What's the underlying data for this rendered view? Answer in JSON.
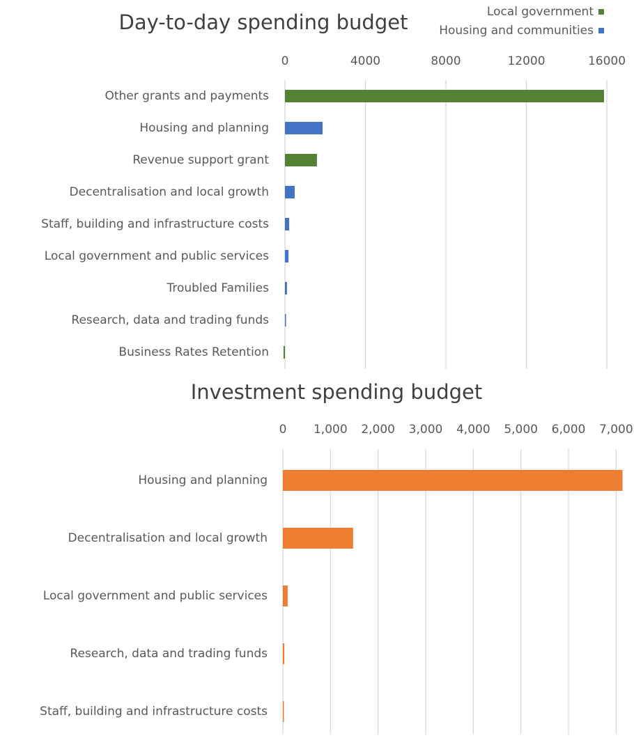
{
  "chart_data": [
    {
      "type": "hbar",
      "title": "Day-to-day spending budget",
      "categories": [
        "Other grants and payments",
        "Housing and planning",
        "Revenue support grant",
        "Decentralisation and local growth",
        "Staff, building and infrastructure costs",
        "Local government and public services",
        "Troubled Families",
        "Research, data and trading funds",
        "Business Rates Retention"
      ],
      "series": [
        {
          "name": "Local government",
          "color": "#548235",
          "values": [
            15860,
            null,
            1590,
            null,
            null,
            null,
            null,
            null,
            -70
          ]
        },
        {
          "name": "Housing and communities",
          "color": "#4472c4",
          "values": [
            null,
            1870,
            null,
            485,
            210,
            175,
            100,
            20,
            null
          ]
        }
      ],
      "xlim": [
        0,
        16000
      ],
      "xticks": [
        0,
        4000,
        8000,
        12000,
        16000
      ],
      "grid": true,
      "legend": "top-right"
    },
    {
      "type": "hbar",
      "title": "Investment spending budget",
      "categories": [
        "Housing and planning",
        "Decentralisation and local growth",
        "Local government and public services",
        "Research, data and trading funds",
        "Staff, building and infrastructure costs"
      ],
      "series": [
        {
          "name": null,
          "color": "#ed7d31",
          "values": [
            7135,
            1475,
            100,
            30,
            15
          ]
        }
      ],
      "xlim": [
        0,
        7200
      ],
      "xticks": [
        0,
        {
          "value": 1000,
          "label": "1,000"
        },
        {
          "value": 2000,
          "label": "2,000"
        },
        {
          "value": 3000,
          "label": "3,000"
        },
        {
          "value": 4000,
          "label": "4,000"
        },
        {
          "value": 5000,
          "label": "5,000"
        },
        {
          "value": 6000,
          "label": "6,000"
        },
        {
          "value": 7000,
          "label": "7,000"
        }
      ],
      "grid": true
    }
  ]
}
